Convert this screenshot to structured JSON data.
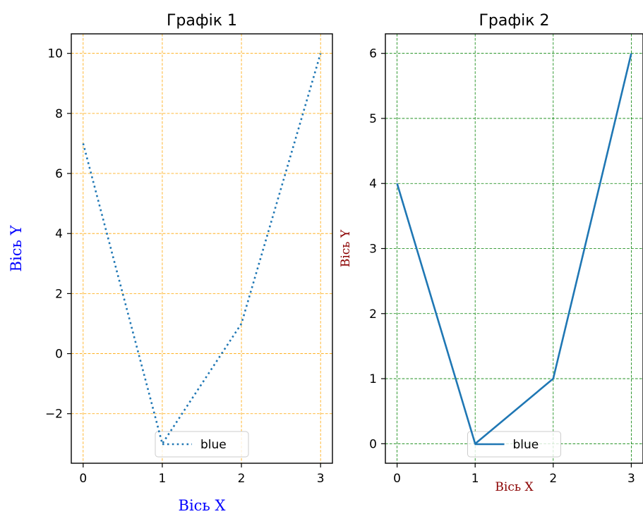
{
  "chart_data": [
    {
      "type": "line",
      "title": "Графік 1",
      "xlabel": "Вісь X",
      "ylabel": "Вісь Y",
      "label_color": "#0000ff",
      "grid": true,
      "grid_color": "#ffa500",
      "grid_style": "dashed",
      "x": [
        0,
        1,
        2,
        3
      ],
      "series": [
        {
          "name": "blue",
          "values": [
            7,
            -3,
            1,
            10
          ],
          "color": "#1f77b4",
          "linestyle": "dotted"
        }
      ],
      "xlim": [
        -0.15,
        3.15
      ],
      "ylim": [
        -3.65,
        10.65
      ],
      "xticks": [
        0,
        1,
        2,
        3
      ],
      "xtick_labels": [
        "0",
        "1",
        "2",
        "3"
      ],
      "yticks": [
        -2,
        0,
        2,
        4,
        6,
        8,
        10
      ],
      "ytick_labels": [
        "−2",
        "0",
        "2",
        "4",
        "6",
        "8",
        "10"
      ],
      "legend": {
        "position": "lower-center",
        "entries": [
          "blue"
        ]
      }
    },
    {
      "type": "line",
      "title": "Графік 2",
      "xlabel": "Вісь X",
      "ylabel": "Вісь Y",
      "label_color": "#8b0000",
      "grid": true,
      "grid_color": "#008000",
      "grid_style": "dashed",
      "x": [
        0,
        1,
        2,
        3
      ],
      "series": [
        {
          "name": "blue",
          "values": [
            4,
            0,
            1,
            6
          ],
          "color": "#1f77b4",
          "linestyle": "solid"
        }
      ],
      "xlim": [
        -0.15,
        3.15
      ],
      "ylim": [
        -0.3,
        6.3
      ],
      "xticks": [
        0,
        1,
        2,
        3
      ],
      "xtick_labels": [
        "0",
        "1",
        "2",
        "3"
      ],
      "yticks": [
        0,
        1,
        2,
        3,
        4,
        5,
        6
      ],
      "ytick_labels": [
        "0",
        "1",
        "2",
        "3",
        "4",
        "5",
        "6"
      ],
      "legend": {
        "position": "lower-center",
        "entries": [
          "blue"
        ]
      }
    }
  ]
}
